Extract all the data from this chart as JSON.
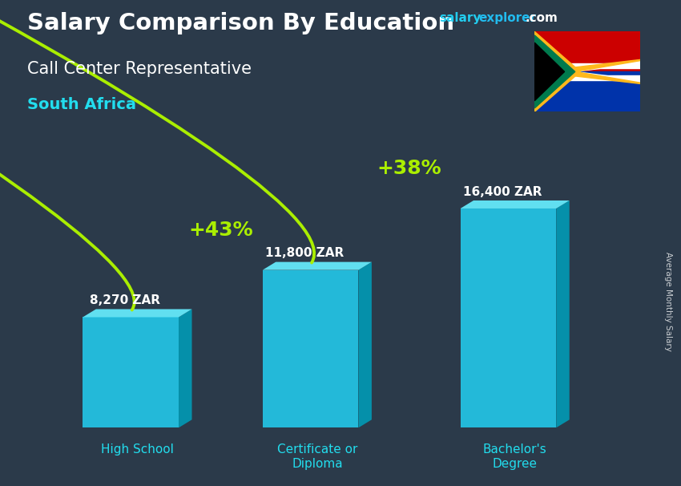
{
  "title": "Salary Comparison By Education",
  "subtitle": "Call Center Representative",
  "country": "South Africa",
  "ylabel": "Average Monthly Salary",
  "categories": [
    "High School",
    "Certificate or\nDiploma",
    "Bachelor's\nDegree"
  ],
  "values": [
    8270,
    11800,
    16400
  ],
  "value_labels": [
    "8,270 ZAR",
    "11,800 ZAR",
    "16,400 ZAR"
  ],
  "pct_labels": [
    "+43%",
    "+38%"
  ],
  "pct_color": "#aaee00",
  "arrow_color": "#77cc00",
  "title_color": "#ffffff",
  "subtitle_color": "#ffffff",
  "country_color": "#22ddee",
  "value_label_color": "#ffffff",
  "category_label_color": "#22ddee",
  "bg_color": "#2b3a4a",
  "website_salary_color": "#22ccee",
  "website_explorer_color": "#ffffff",
  "figsize": [
    8.5,
    6.06
  ],
  "dpi": 100
}
